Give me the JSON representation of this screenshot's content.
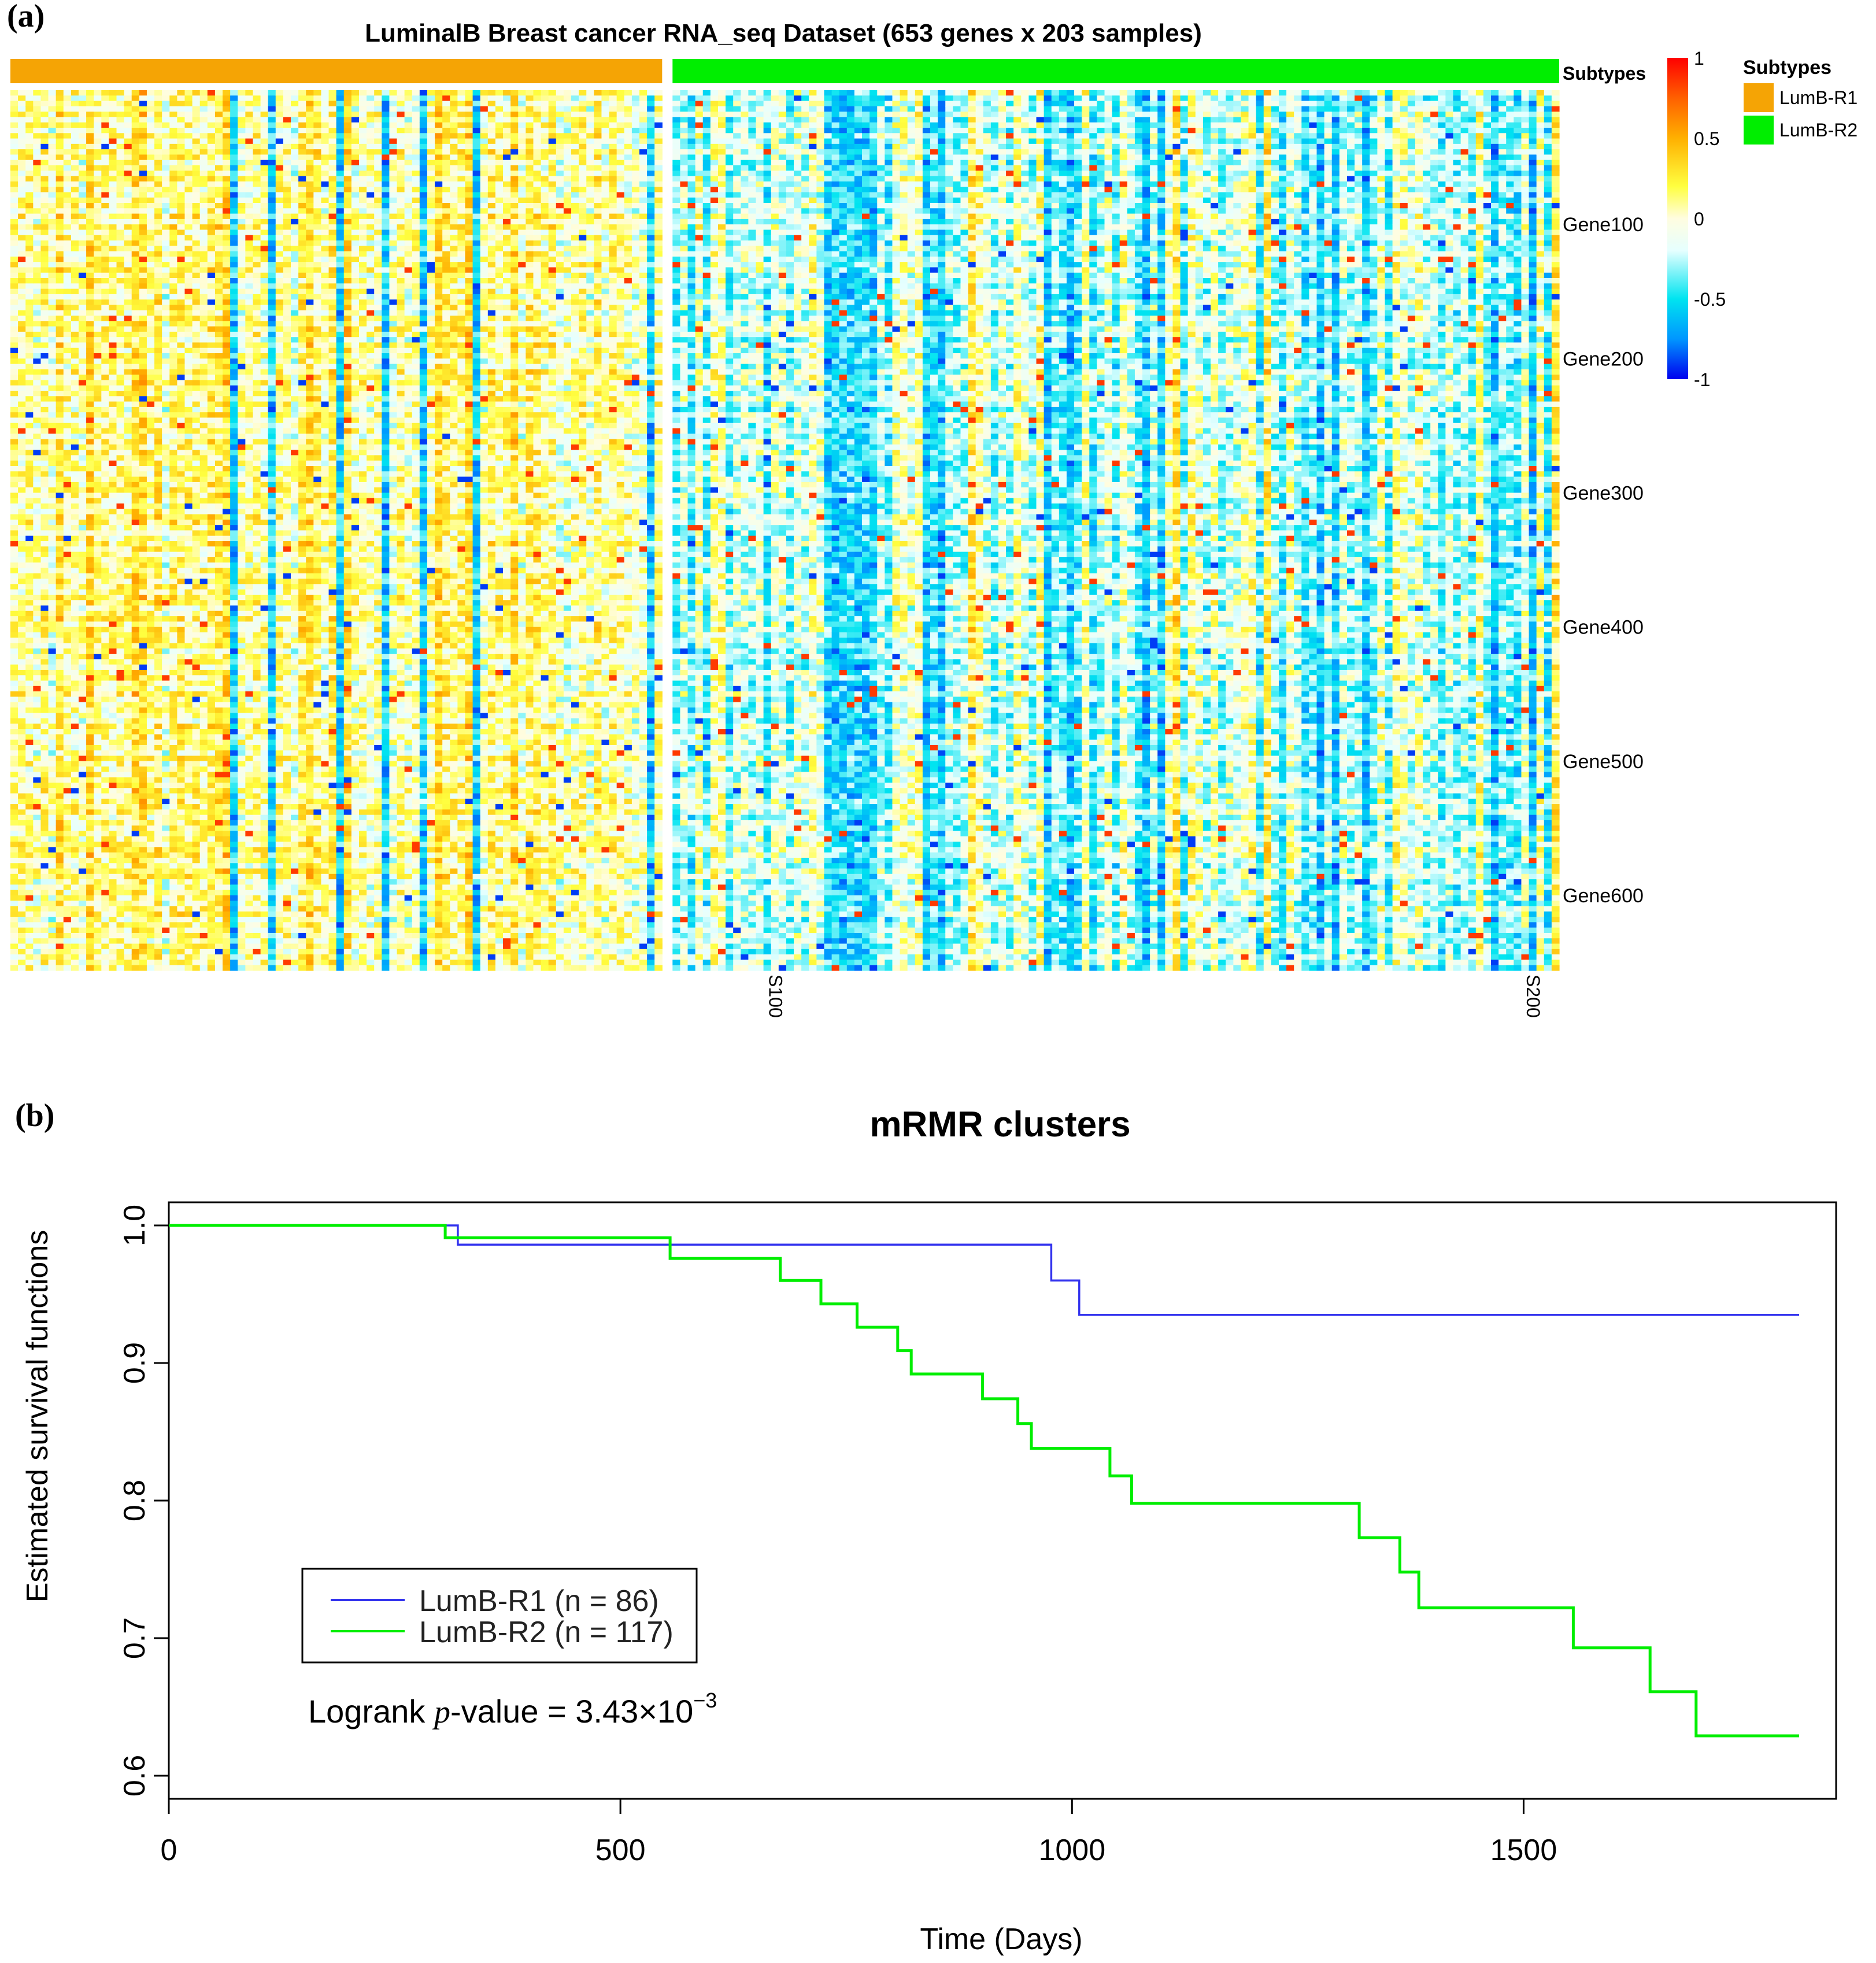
{
  "panels": {
    "a_label": "(a)",
    "b_label": "(b)"
  },
  "chart_data": [
    {
      "type": "heatmap",
      "title": "LuminalB Breast cancer RNA_seq Dataset (653 genes x 203 samples)",
      "rows": 653,
      "columns": 203,
      "row_labels": [
        "Gene100",
        "Gene200",
        "Gene300",
        "Gene400",
        "Gene500",
        "Gene600"
      ],
      "row_label_indices": [
        100,
        200,
        300,
        400,
        500,
        600
      ],
      "column_labels": [
        "S100",
        "S200"
      ],
      "column_label_indices": [
        100,
        200
      ],
      "annotation_track": {
        "name": "Subtypes",
        "groups": [
          {
            "label": "LumB-R1",
            "count": 86,
            "color": "#f5a405"
          },
          {
            "label": "LumB-R2",
            "count": 117,
            "color": "#00ee00"
          }
        ]
      },
      "colorbar": {
        "range": [
          -1,
          1
        ],
        "ticks": [
          {
            "value": 1,
            "label": "1"
          },
          {
            "value": 0.5,
            "label": "0.5"
          },
          {
            "value": 0,
            "label": "0"
          },
          {
            "value": -0.5,
            "label": "-0.5"
          },
          {
            "value": -1,
            "label": "-1"
          }
        ],
        "stops": [
          {
            "v": -1,
            "color": "#0000ee"
          },
          {
            "v": -0.75,
            "color": "#0096ff"
          },
          {
            "v": -0.5,
            "color": "#00e4f0"
          },
          {
            "v": -0.2,
            "color": "#e6ffff"
          },
          {
            "v": 0,
            "color": "#fffde0"
          },
          {
            "v": 0.2,
            "color": "#ffff40"
          },
          {
            "v": 0.5,
            "color": "#ffb000"
          },
          {
            "v": 0.75,
            "color": "#ff6000"
          },
          {
            "v": 1,
            "color": "#ff0000"
          }
        ]
      },
      "legend_title": "Subtypes"
    },
    {
      "type": "line",
      "subtype": "kaplan-meier",
      "title": "mRMR clusters",
      "xlabel": "Time (Days)",
      "ylabel": "Estimated survival functions",
      "xlim": [
        0,
        1850
      ],
      "ylim": [
        0.6,
        1.0
      ],
      "xticks": [
        0,
        500,
        1000,
        1500
      ],
      "yticks": [
        0.6,
        0.7,
        0.8,
        0.9,
        1.0
      ],
      "xtick_labels": [
        "0",
        "500",
        "1000",
        "1500"
      ],
      "ytick_labels": [
        "0.6",
        "0.7",
        "0.8",
        "0.9",
        "1.0"
      ],
      "series": [
        {
          "name": "LumB-R1 (n = 86)",
          "color": "#3333ee",
          "x": [
            0,
            320,
            977,
            1008,
            1805
          ],
          "y": [
            1.0,
            0.986,
            0.96,
            0.935,
            0.935
          ]
        },
        {
          "name": "LumB-R2 (n = 117)",
          "color": "#00ee00",
          "x": [
            0,
            306,
            555,
            677,
            722,
            762,
            807,
            822,
            901,
            940,
            955,
            1042,
            1066,
            1318,
            1363,
            1384,
            1555,
            1640,
            1691,
            1805
          ],
          "y": [
            1.0,
            0.991,
            0.976,
            0.96,
            0.943,
            0.926,
            0.909,
            0.892,
            0.874,
            0.856,
            0.838,
            0.818,
            0.798,
            0.773,
            0.748,
            0.722,
            0.693,
            0.661,
            0.629,
            0.629
          ]
        }
      ],
      "legend": {
        "entries": [
          "LumB-R1 (n = 86)",
          "LumB-R2 (n = 117)"
        ],
        "position": "bottom-left"
      },
      "annotation": {
        "prefix": "Logrank ",
        "p": "p",
        "rest": "-value = 3.43",
        "times": "×10",
        "exponent": "−3"
      }
    }
  ]
}
